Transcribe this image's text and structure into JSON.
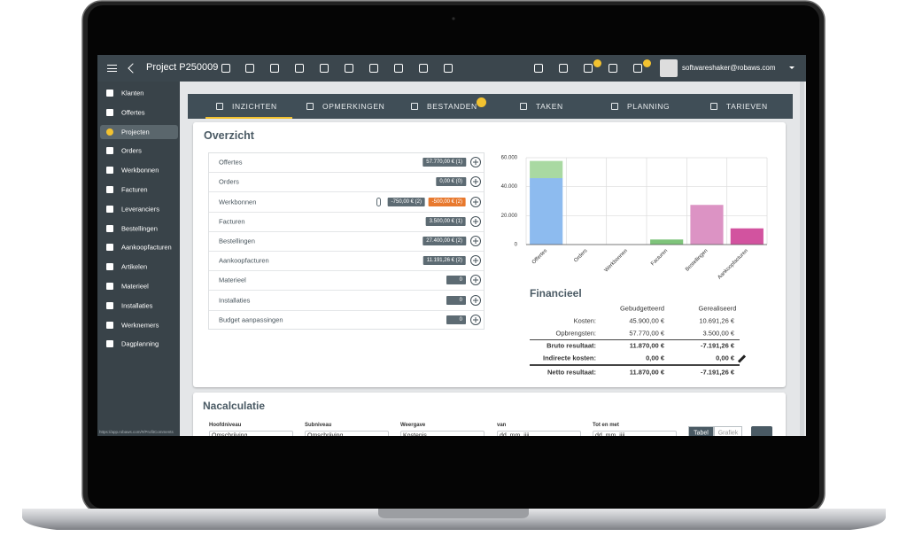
{
  "topbar": {
    "title": "Project P250009",
    "user": "softwareshaker@robaws.com"
  },
  "sidebar": {
    "items": [
      {
        "label": "Klanten"
      },
      {
        "label": "Offertes"
      },
      {
        "label": "Projecten",
        "active": true
      },
      {
        "label": "Orders"
      },
      {
        "label": "Werkbonnen"
      },
      {
        "label": "Facturen"
      },
      {
        "label": "Leveranciers"
      },
      {
        "label": "Bestellingen"
      },
      {
        "label": "Aankoopfacturen"
      },
      {
        "label": "Artikelen"
      },
      {
        "label": "Materieel"
      },
      {
        "label": "Installaties"
      },
      {
        "label": "Werknemers"
      },
      {
        "label": "Dagplanning"
      }
    ],
    "url": "https://app.robaws.com/#/ProfitComments"
  },
  "tabs": [
    {
      "label": "INZICHTEN",
      "active": true
    },
    {
      "label": "OPMERKINGEN"
    },
    {
      "label": "BESTANDEN",
      "badge": true
    },
    {
      "label": "TAKEN"
    },
    {
      "label": "PLANNING"
    },
    {
      "label": "TARIEVEN"
    }
  ],
  "overzicht": {
    "title": "Overzicht",
    "rows": [
      {
        "label": "Offertes",
        "amounts": [
          {
            "text": "57.770,00 € (1)",
            "color": "#5d6b73"
          }
        ]
      },
      {
        "label": "Orders",
        "amounts": [
          {
            "text": "0,00 € (0)",
            "color": "#5d6b73"
          }
        ]
      },
      {
        "label": "Werkbonnen",
        "attachment": true,
        "amounts": [
          {
            "text": "-750,00 € (2)",
            "color": "#5d6b73"
          },
          {
            "text": "-500,00 € (2)",
            "color": "#e8792e"
          }
        ]
      },
      {
        "label": "Facturen",
        "amounts": [
          {
            "text": "3.500,00 € (1)",
            "color": "#5d6b73"
          }
        ]
      },
      {
        "label": "Bestellingen",
        "amounts": [
          {
            "text": "27.400,00 € (2)",
            "color": "#5d6b73"
          }
        ]
      },
      {
        "label": "Aankoopfacturen",
        "amounts": [
          {
            "text": "11.191,26 € (2)",
            "color": "#5d6b73"
          }
        ]
      },
      {
        "label": "Materieel",
        "amounts": [
          {
            "text": "0",
            "color": "#5d6b73"
          }
        ]
      },
      {
        "label": "Installaties",
        "amounts": [
          {
            "text": "0",
            "color": "#5d6b73"
          }
        ]
      },
      {
        "label": "Budget aanpassingen",
        "amounts": [
          {
            "text": "0",
            "color": "#5d6b73"
          }
        ]
      }
    ],
    "chart": {
      "type": "bar",
      "stacked": true,
      "grid": true,
      "categories": [
        "Offertes",
        "Orders",
        "Werkbonnen",
        "Facturen",
        "Bestellingen",
        "Aankoopfacturen"
      ],
      "series": [
        {
          "color": "#8dbbef",
          "values": [
            45900,
            null,
            null,
            null,
            null,
            null
          ]
        },
        {
          "color": "#a9d9a2",
          "values": [
            11870,
            null,
            null,
            null,
            null,
            null
          ]
        },
        {
          "color": "#7ec47a",
          "values": [
            null,
            null,
            null,
            3500,
            null,
            null
          ]
        },
        {
          "color": "#dc93c4",
          "values": [
            null,
            null,
            null,
            null,
            27400,
            null
          ]
        },
        {
          "color": "#d2539f",
          "values": [
            null,
            null,
            null,
            null,
            null,
            11191.26
          ]
        }
      ],
      "ylim": [
        0,
        60000
      ],
      "yticks": [
        0,
        {
          "value": 20000,
          "label": "20.000"
        },
        {
          "value": 40000,
          "label": "40.000"
        },
        {
          "value": 60000,
          "label": "60.000"
        }
      ]
    }
  },
  "financieel": {
    "title": "Financieel",
    "columns": [
      "Gebudgetteerd",
      "Gerealiseerd"
    ],
    "rows": [
      {
        "label": "Kosten:",
        "values": [
          "45.900,00 €",
          "10.691,26 €"
        ]
      },
      {
        "label": "Opbrengsten:",
        "values": [
          "57.770,00 €",
          "3.500,00 €"
        ]
      },
      {
        "label": "Bruto resultaat:",
        "values": [
          "11.870,00 €",
          "-7.191,26 €"
        ],
        "bold": true
      },
      {
        "label": "Indirecte kosten:",
        "values": [
          "0,00 €",
          "0,00 €"
        ],
        "bold": true,
        "editable": true
      },
      {
        "label": "Netto resultaat:",
        "values": [
          "11.870,00 €",
          "-7.191,26 €"
        ],
        "bold": true
      }
    ]
  },
  "nacalculatie": {
    "title": "Nacalculatie",
    "fields": [
      {
        "label": "Hoofdniveau",
        "value": "Omschrijving"
      },
      {
        "label": "Subniveau",
        "value": "Omschrijving"
      },
      {
        "label": "Weergave",
        "value": "Kostenis"
      },
      {
        "label": "van",
        "value": "dd. mm. jjjj"
      },
      {
        "label": "Tot en met",
        "value": "dd. mm. jjjj"
      }
    ],
    "toggle": [
      {
        "label": "Tabel",
        "active": true
      },
      {
        "label": "Grafiek"
      }
    ]
  }
}
